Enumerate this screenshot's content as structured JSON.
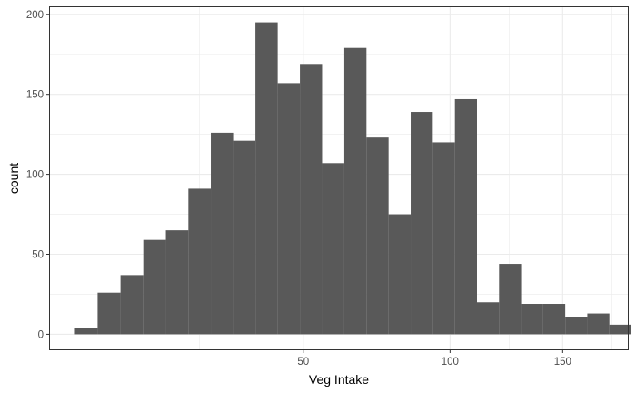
{
  "chart_data": {
    "type": "bar",
    "xlabel": "Veg Intake",
    "ylabel": "count",
    "x_scale": "sqrt",
    "xlim": [
      4,
      184
    ],
    "ylim": [
      -10,
      205
    ],
    "x_ticks": [
      50,
      100,
      150
    ],
    "x_minor_ticks": [
      25,
      75,
      125,
      175
    ],
    "y_ticks": [
      0,
      50,
      100,
      150,
      200
    ],
    "grid": true,
    "bar_color": "#595959",
    "panel_border_color": "#333333",
    "grid_color": "#ebebeb",
    "bins": [
      {
        "x0": 6.24,
        "x1": 8.81,
        "count": 4
      },
      {
        "x0": 8.81,
        "x1": 11.73,
        "count": 26
      },
      {
        "x0": 11.73,
        "x1": 15.05,
        "count": 37
      },
      {
        "x0": 15.05,
        "x1": 18.75,
        "count": 59
      },
      {
        "x0": 18.75,
        "x1": 22.84,
        "count": 65
      },
      {
        "x0": 22.84,
        "x1": 27.32,
        "count": 91
      },
      {
        "x0": 27.32,
        "x1": 32.17,
        "count": 126
      },
      {
        "x0": 32.17,
        "x1": 37.41,
        "count": 121
      },
      {
        "x0": 37.41,
        "x1": 43.05,
        "count": 195
      },
      {
        "x0": 43.05,
        "x1": 49.06,
        "count": 157
      },
      {
        "x0": 49.06,
        "x1": 55.45,
        "count": 169
      },
      {
        "x0": 55.45,
        "x1": 62.25,
        "count": 107
      },
      {
        "x0": 62.25,
        "x1": 69.42,
        "count": 179
      },
      {
        "x0": 69.42,
        "x1": 76.97,
        "count": 123
      },
      {
        "x0": 76.97,
        "x1": 84.91,
        "count": 75
      },
      {
        "x0": 84.91,
        "x1": 93.23,
        "count": 139
      },
      {
        "x0": 93.23,
        "x1": 101.95,
        "count": 120
      },
      {
        "x0": 101.95,
        "x1": 111.04,
        "count": 147
      },
      {
        "x0": 111.04,
        "x1": 120.51,
        "count": 20
      },
      {
        "x0": 120.51,
        "x1": 130.37,
        "count": 44
      },
      {
        "x0": 130.37,
        "x1": 140.62,
        "count": 19
      },
      {
        "x0": 140.62,
        "x1": 151.25,
        "count": 19
      },
      {
        "x0": 151.25,
        "x1": 162.27,
        "count": 11
      },
      {
        "x0": 162.27,
        "x1": 173.68,
        "count": 13
      },
      {
        "x0": 173.68,
        "x1": 185.48,
        "count": 6
      }
    ]
  }
}
